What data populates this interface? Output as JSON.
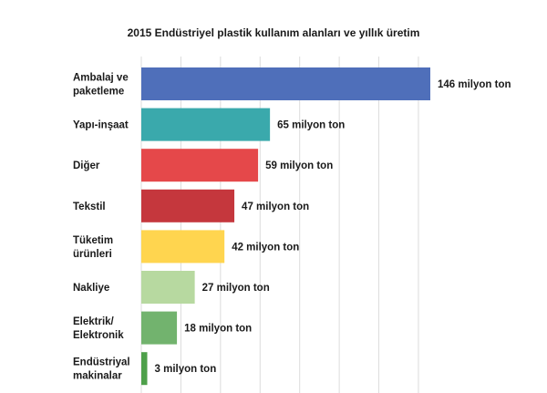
{
  "chart_data": {
    "type": "bar",
    "orientation": "horizontal",
    "title": "2015 Endüstriyel plastik kullanım alanları ve yıllık üretim",
    "xlabel": "",
    "ylabel": "",
    "grid": true,
    "xlim": [
      0,
      150
    ],
    "categories": [
      [
        "Ambalaj ve",
        "paketleme"
      ],
      [
        "Yapı-inşaat"
      ],
      [
        "Diğer"
      ],
      [
        "Tekstil"
      ],
      [
        "Tüketim",
        "ürünleri"
      ],
      [
        "Nakliye"
      ],
      [
        "Elektrik/",
        "Elektronik"
      ],
      [
        "Endüstriyal",
        "makinalar"
      ]
    ],
    "values": [
      146,
      65,
      59,
      47,
      42,
      27,
      18,
      3
    ],
    "value_labels": [
      "146 milyon ton",
      "65 milyon ton",
      "59 milyon ton",
      "47 milyon ton",
      "42 milyon ton",
      "27 milyon ton",
      "18 milyon ton",
      "3 milyon ton"
    ],
    "colors": [
      "#4f6fba",
      "#3aa9ac",
      "#e5484a",
      "#c5373d",
      "#ffd54f",
      "#b7d9a0",
      "#72b36e",
      "#4ea04a"
    ]
  }
}
